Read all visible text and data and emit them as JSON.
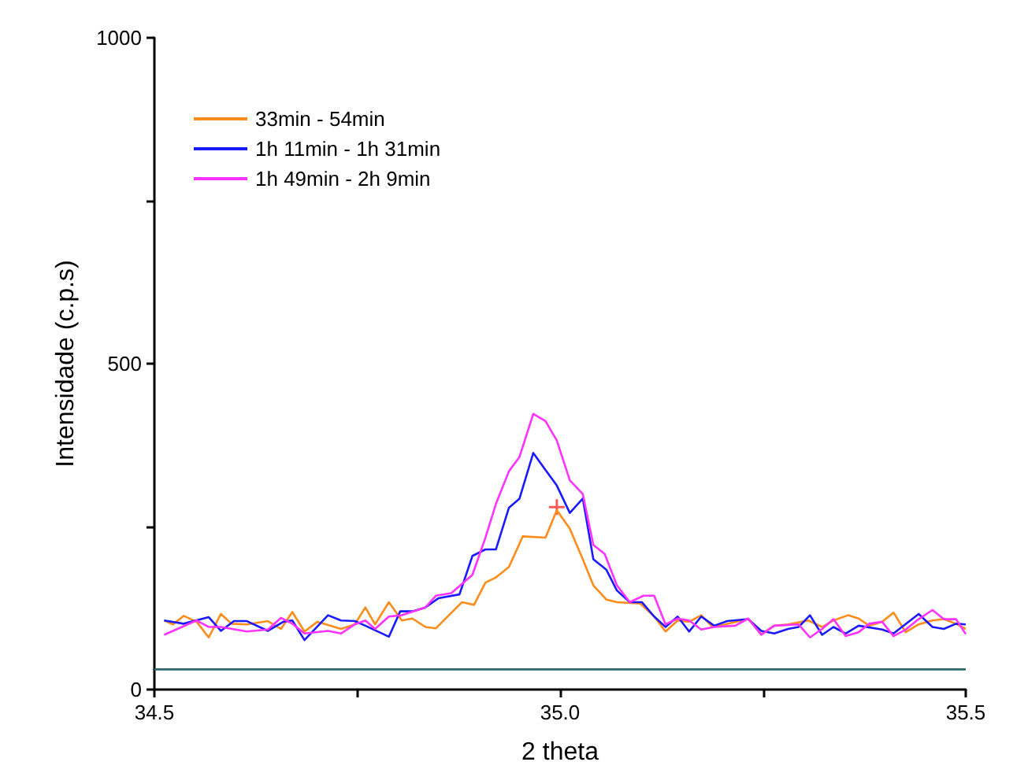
{
  "chart_data": {
    "type": "line",
    "xlabel": "2 theta",
    "ylabel": "Intensidade (c.p.s)",
    "xlim": [
      34.5,
      35.5
    ],
    "xticks": [
      34.5,
      {
        "value": 34.75,
        "label": null
      },
      {
        "value": 35.0,
        "label": "35.0"
      },
      {
        "value": 35.25,
        "label": null
      },
      35.5
    ],
    "ylim": [
      0,
      1000
    ],
    "yticks": [
      0,
      {
        "value": 250,
        "label": null
      },
      500,
      {
        "value": 750,
        "label": null
      },
      1000
    ],
    "grid": false,
    "legend": "top left",
    "marker": "none",
    "line_style": "solid",
    "series": [
      {
        "name": "33min - 54min",
        "color": "#ff8c1a",
        "x": [
          34.512,
          34.523,
          34.536,
          34.552,
          34.567,
          34.582,
          34.595,
          34.614,
          34.64,
          34.656,
          34.67,
          34.685,
          34.701,
          34.73,
          34.747,
          34.76,
          34.772,
          34.789,
          34.805,
          34.818,
          34.834,
          34.847,
          34.879,
          34.894,
          34.908,
          34.921,
          34.937,
          34.954,
          34.982,
          34.996,
          35.012,
          35.028,
          35.041,
          35.057,
          35.07,
          35.099,
          35.116,
          35.13,
          35.145,
          35.159,
          35.174,
          35.187,
          35.203,
          35.232,
          35.248,
          35.264,
          35.281,
          35.306,
          35.323,
          35.337,
          35.355,
          35.368,
          35.381,
          35.397,
          35.411,
          35.426,
          35.442,
          35.459,
          35.473,
          35.488,
          35.5
        ],
        "values": [
          106,
          100,
          113,
          104,
          80,
          116,
          101,
          100,
          105,
          93,
          119,
          89,
          104,
          93,
          100,
          126,
          100,
          134,
          106,
          109,
          96,
          94,
          134,
          130,
          164,
          172,
          188,
          235,
          233,
          275,
          247,
          200,
          160,
          138,
          134,
          132,
          112,
          89,
          106,
          104,
          114,
          97,
          100,
          108,
          85,
          98,
          100,
          106,
          96,
          106,
          114,
          109,
          98,
          104,
          118,
          88,
          100,
          106,
          108,
          101,
          93
        ]
      },
      {
        "name": "1h 11min - 1h 31min",
        "color": "#1a1aff",
        "x": [
          34.512,
          34.536,
          34.567,
          34.582,
          34.598,
          34.614,
          34.64,
          34.659,
          34.67,
          34.685,
          34.714,
          34.73,
          34.747,
          34.76,
          34.789,
          34.803,
          34.818,
          34.834,
          34.85,
          34.876,
          34.892,
          34.908,
          34.921,
          34.937,
          34.95,
          34.967,
          34.982,
          34.996,
          35.012,
          35.028,
          35.041,
          35.057,
          35.07,
          35.086,
          35.101,
          35.116,
          35.13,
          35.145,
          35.159,
          35.174,
          35.19,
          35.206,
          35.232,
          35.248,
          35.264,
          35.281,
          35.294,
          35.308,
          35.323,
          35.337,
          35.352,
          35.368,
          35.397,
          35.411,
          35.442,
          35.459,
          35.473,
          35.488,
          35.5
        ],
        "values": [
          106,
          101,
          111,
          90,
          105,
          105,
          90,
          104,
          106,
          76,
          114,
          106,
          105,
          98,
          81,
          120,
          120,
          126,
          140,
          146,
          205,
          215,
          215,
          279,
          293,
          363,
          337,
          313,
          271,
          293,
          200,
          184,
          152,
          134,
          134,
          112,
          96,
          112,
          89,
          112,
          98,
          105,
          108,
          90,
          86,
          93,
          96,
          114,
          84,
          96,
          86,
          98,
          92,
          86,
          116,
          96,
          93,
          101,
          100
        ]
      },
      {
        "name": "1h 49min - 2h 9min",
        "color": "#ff33ff",
        "x": [
          34.512,
          34.552,
          34.567,
          34.582,
          34.614,
          34.64,
          34.656,
          34.67,
          34.685,
          34.714,
          34.73,
          34.747,
          34.76,
          34.772,
          34.789,
          34.805,
          34.834,
          34.847,
          34.866,
          34.892,
          34.908,
          34.921,
          34.937,
          34.95,
          34.967,
          34.982,
          34.996,
          35.012,
          35.028,
          35.041,
          35.055,
          35.07,
          35.086,
          35.103,
          35.116,
          35.13,
          35.145,
          35.159,
          35.174,
          35.19,
          35.216,
          35.232,
          35.248,
          35.264,
          35.294,
          35.308,
          35.323,
          35.337,
          35.352,
          35.368,
          35.381,
          35.397,
          35.411,
          35.426,
          35.442,
          35.459,
          35.473,
          35.488,
          35.5
        ],
        "values": [
          84,
          106,
          96,
          96,
          89,
          92,
          110,
          101,
          86,
          90,
          86,
          100,
          106,
          93,
          112,
          114,
          126,
          144,
          148,
          176,
          233,
          285,
          335,
          357,
          423,
          412,
          382,
          321,
          300,
          222,
          208,
          160,
          134,
          144,
          144,
          100,
          109,
          106,
          92,
          96,
          98,
          109,
          84,
          98,
          100,
          80,
          93,
          108,
          82,
          88,
          101,
          104,
          82,
          92,
          108,
          122,
          108,
          108,
          85
        ]
      },
      {
        "color": "#2a6a6a",
        "x": [
          34.5,
          35.5
        ],
        "values": [
          31,
          31
        ]
      },
      {
        "type": "scatter",
        "marker": "cross",
        "color": "#ff3030",
        "x": [
          34.996
        ],
        "values": [
          280
        ]
      }
    ]
  }
}
